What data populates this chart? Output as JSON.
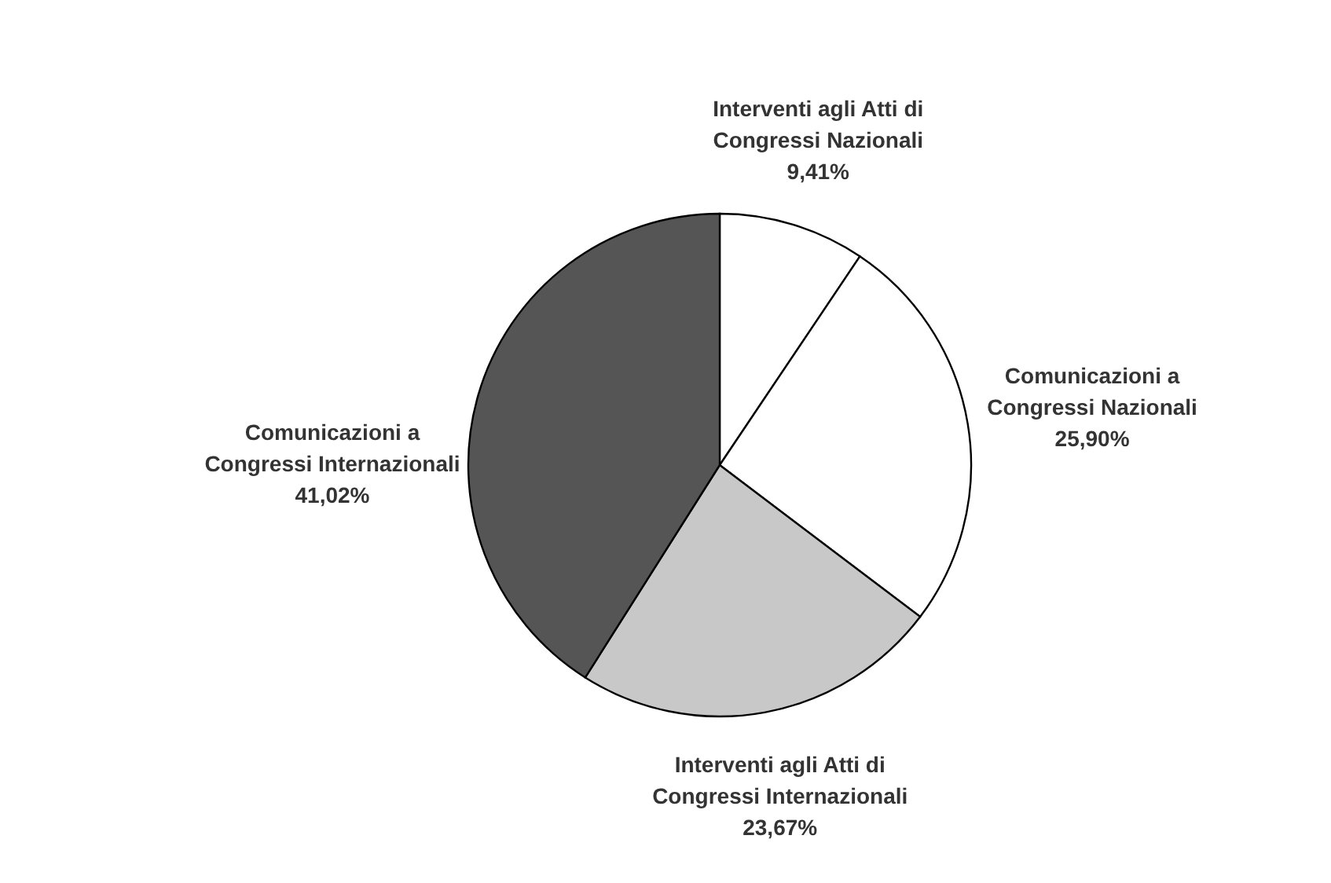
{
  "chart_data": {
    "type": "pie",
    "categories": [
      "Interventi agli Atti di Congressi Nazionali",
      "Comunicazioni a Congressi Nazionali",
      "Interventi agli Atti di Congressi Internazionali",
      "Comunicazioni a Congressi Internazionali"
    ],
    "values": [
      9.41,
      25.9,
      23.67,
      41.02
    ],
    "colors": [
      "#ffffff",
      "#ffffff",
      "#c8c8c8",
      "#555555"
    ],
    "value_labels": [
      "9,41%",
      "25,90%",
      "23,67%",
      "41,02%"
    ]
  }
}
